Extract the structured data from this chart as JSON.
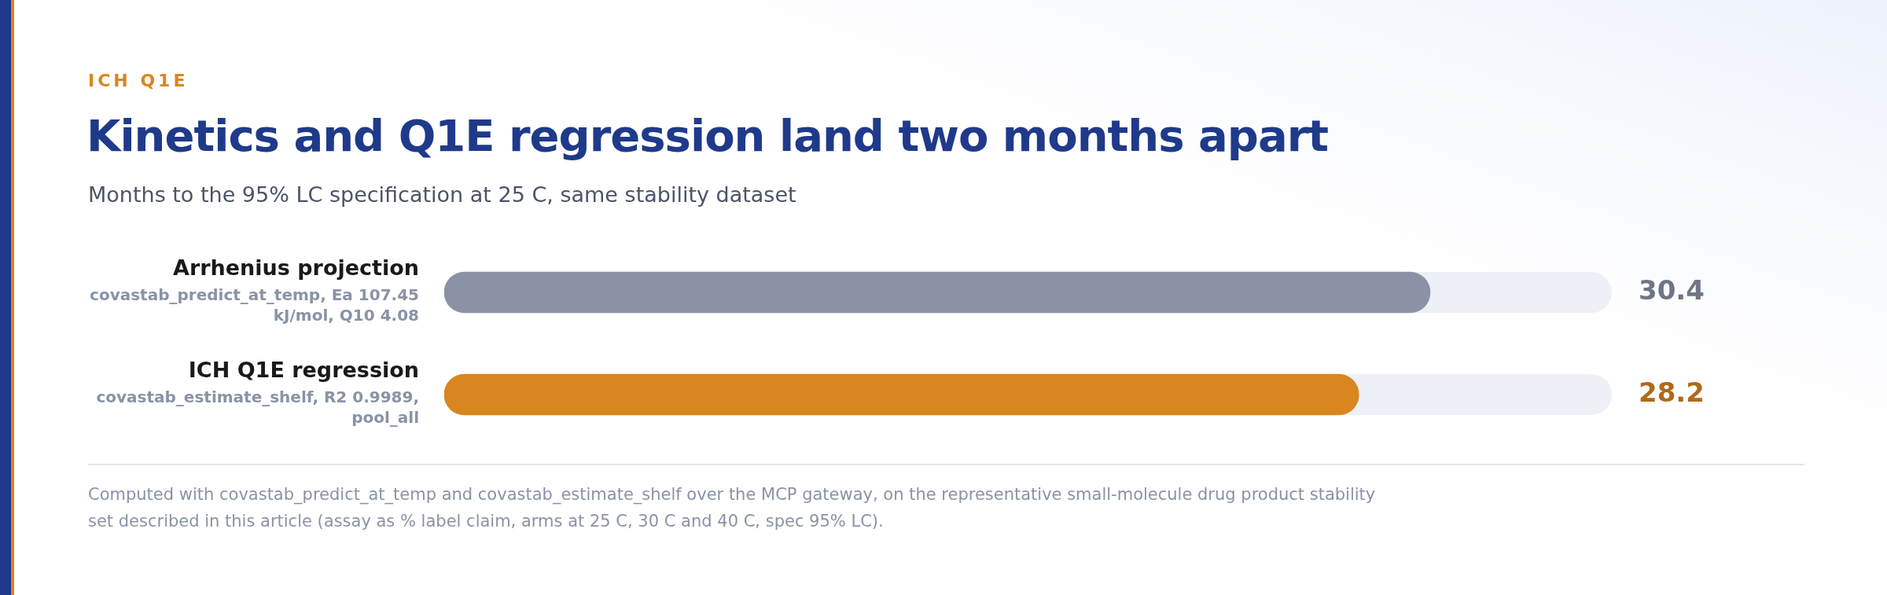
{
  "chart_data": {
    "type": "bar",
    "orientation": "horizontal",
    "subtitle": "ICH Q1E",
    "title": "Kinetics and Q1E regression land two months apart",
    "xlabel": "Months to the 95% LC specification at 25 C, same stability dataset",
    "categories": [
      "Arrhenius projection",
      "ICH Q1E regression"
    ],
    "values": [
      30.4,
      28.2
    ],
    "colors": [
      "#8a93a6",
      "#d98520"
    ],
    "xlim": [
      0,
      36
    ],
    "data_labels": true,
    "tick_labels": false,
    "annotations": [
      "covastab_predict_at_temp, Ea 107.45 kJ/mol, Q10 4.08",
      "covastab_estimate_shelf, R2 0.9989, pool_all",
      "Computed with covastab_predict_at_temp and covastab_estimate_shelf over the MCP gateway, on the representative small-molecule drug product stability set described in this article (assay as % label claim, arms at 25 C, 30 C and 40 C, spec 95% LC)."
    ]
  }
}
